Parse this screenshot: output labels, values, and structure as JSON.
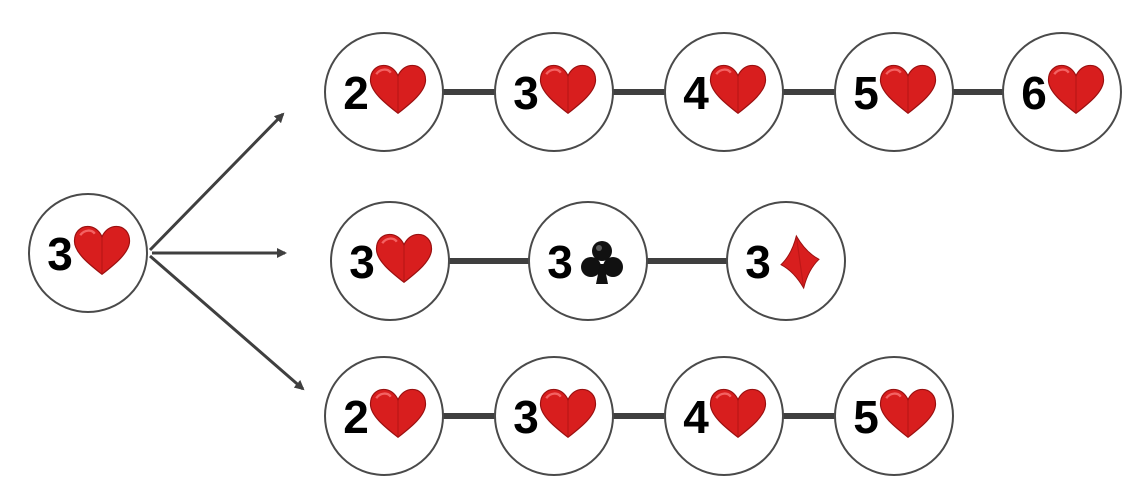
{
  "colors": {
    "node_stroke": "#4a4a4a",
    "edge": "#3f3f3f",
    "arrow": "#3f3f3f",
    "heart": "#d81e1e",
    "diamond": "#d81e1e",
    "club": "#111111",
    "rank_text": "#000000"
  },
  "source": {
    "rank": "3",
    "suit": "heart"
  },
  "rows": [
    {
      "cards": [
        {
          "rank": "2",
          "suit": "heart"
        },
        {
          "rank": "3",
          "suit": "heart"
        },
        {
          "rank": "4",
          "suit": "heart"
        },
        {
          "rank": "5",
          "suit": "heart"
        },
        {
          "rank": "6",
          "suit": "heart"
        }
      ]
    },
    {
      "cards": [
        {
          "rank": "3",
          "suit": "heart"
        },
        {
          "rank": "3",
          "suit": "club"
        },
        {
          "rank": "3",
          "suit": "diamond"
        }
      ]
    },
    {
      "cards": [
        {
          "rank": "2",
          "suit": "heart"
        },
        {
          "rank": "3",
          "suit": "heart"
        },
        {
          "rank": "4",
          "suit": "heart"
        },
        {
          "rank": "5",
          "suit": "heart"
        }
      ]
    }
  ]
}
